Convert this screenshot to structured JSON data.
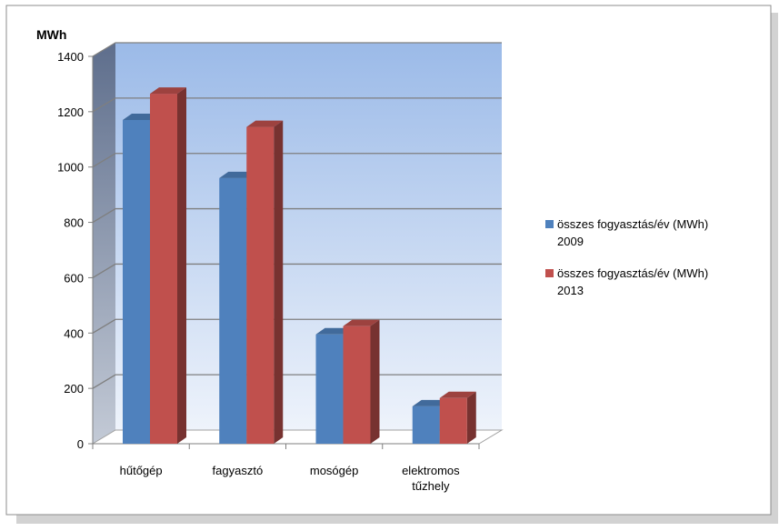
{
  "chart_data": {
    "type": "bar",
    "title": "",
    "ylabel": "MWh",
    "xlabel": "",
    "ylim": [
      0,
      1400
    ],
    "yticks": [
      0,
      200,
      400,
      600,
      800,
      1000,
      1200,
      1400
    ],
    "categories": [
      [
        "hűtőgép"
      ],
      [
        "fagyasztó"
      ],
      [
        "mosógép"
      ],
      [
        "elektromos",
        "tűzhely"
      ]
    ],
    "series": [
      {
        "name": [
          "összes fogyasztás/év (MWh)",
          "2009"
        ],
        "color": "#4f81bd",
        "values": [
          1170,
          960,
          395,
          135
        ]
      },
      {
        "name": [
          "összes fogyasztás/év (MWh)",
          "2013"
        ],
        "color": "#c0504d",
        "values": [
          1265,
          1145,
          425,
          165
        ]
      }
    ],
    "grid": true,
    "legend_position": "right"
  }
}
